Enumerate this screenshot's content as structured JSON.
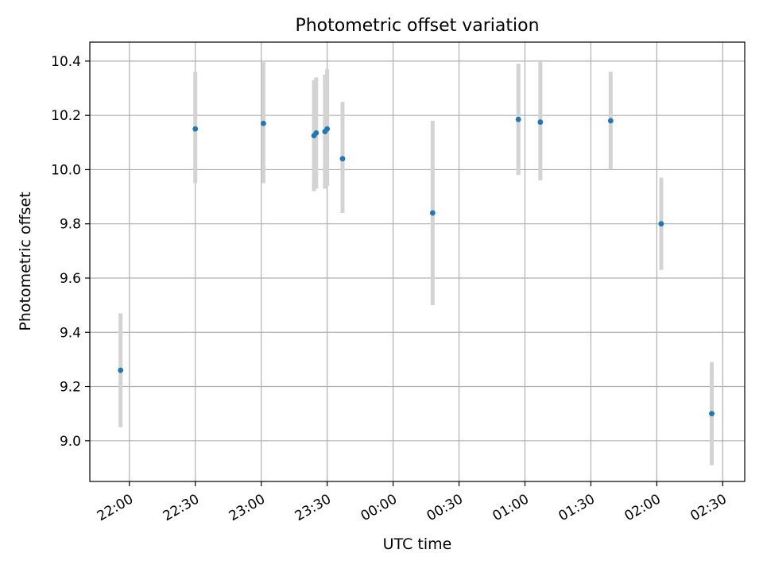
{
  "chart_data": {
    "type": "scatter",
    "title": "Photometric offset variation",
    "xlabel": "UTC time",
    "ylabel": "Photometric offset",
    "x_axis": {
      "kind": "time",
      "range": [
        "21:42",
        "02:40"
      ],
      "ticks": [
        {
          "time": "22:00",
          "label": "22:00"
        },
        {
          "time": "22:30",
          "label": "22:30"
        },
        {
          "time": "23:00",
          "label": "23:00"
        },
        {
          "time": "23:30",
          "label": "23:30"
        },
        {
          "time": "00:00",
          "label": "00:00"
        },
        {
          "time": "00:30",
          "label": "00:30"
        },
        {
          "time": "01:00",
          "label": "01:00"
        },
        {
          "time": "01:30",
          "label": "01:30"
        },
        {
          "time": "02:00",
          "label": "02:00"
        },
        {
          "time": "02:30",
          "label": "02:30"
        }
      ]
    },
    "y_axis": {
      "range": [
        8.85,
        10.47
      ],
      "ticks": [
        {
          "value": 9.0,
          "label": "9.0"
        },
        {
          "value": 9.2,
          "label": "9.2"
        },
        {
          "value": 9.4,
          "label": "9.4"
        },
        {
          "value": 9.6,
          "label": "9.6"
        },
        {
          "value": 9.8,
          "label": "9.8"
        },
        {
          "value": 10.0,
          "label": "10.0"
        },
        {
          "value": 10.2,
          "label": "10.2"
        },
        {
          "value": 10.4,
          "label": "10.4"
        }
      ]
    },
    "grid": true,
    "points": [
      {
        "time": "21:56",
        "y": 9.26,
        "ylow": 9.05,
        "yhigh": 9.47
      },
      {
        "time": "22:30",
        "y": 10.15,
        "ylow": 9.95,
        "yhigh": 10.36
      },
      {
        "time": "23:01",
        "y": 10.17,
        "ylow": 9.95,
        "yhigh": 10.4
      },
      {
        "time": "23:24",
        "y": 10.125,
        "ylow": 9.92,
        "yhigh": 10.33
      },
      {
        "time": "23:25",
        "y": 10.135,
        "ylow": 9.93,
        "yhigh": 10.34
      },
      {
        "time": "23:29",
        "y": 10.14,
        "ylow": 9.93,
        "yhigh": 10.35
      },
      {
        "time": "23:30",
        "y": 10.15,
        "ylow": 9.94,
        "yhigh": 10.37
      },
      {
        "time": "23:37",
        "y": 10.04,
        "ylow": 9.84,
        "yhigh": 10.25
      },
      {
        "time": "00:18",
        "y": 9.84,
        "ylow": 9.5,
        "yhigh": 10.18
      },
      {
        "time": "00:57",
        "y": 10.185,
        "ylow": 9.98,
        "yhigh": 10.39
      },
      {
        "time": "01:07",
        "y": 10.175,
        "ylow": 9.96,
        "yhigh": 10.4
      },
      {
        "time": "01:39",
        "y": 10.18,
        "ylow": 10.0,
        "yhigh": 10.36
      },
      {
        "time": "02:02",
        "y": 9.8,
        "ylow": 9.63,
        "yhigh": 9.97
      },
      {
        "time": "02:25",
        "y": 9.1,
        "ylow": 8.91,
        "yhigh": 9.29
      }
    ],
    "colors": {
      "point": "#1f77b4",
      "errorbar": "#d3d3d3",
      "grid": "#b0b0b0",
      "axis": "#000000"
    }
  }
}
